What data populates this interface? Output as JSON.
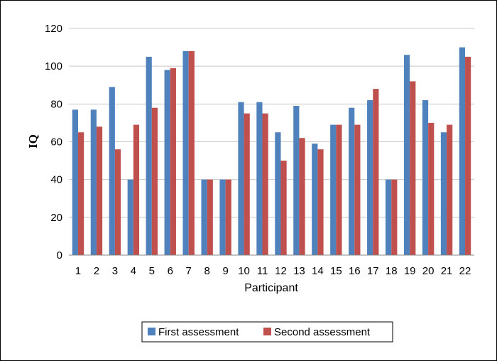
{
  "chart_data": {
    "type": "bar",
    "title": "",
    "xlabel": "Participant",
    "ylabel": "IQ",
    "ylim": [
      0,
      120
    ],
    "yticks": [
      0,
      20,
      40,
      60,
      80,
      100,
      120
    ],
    "grid": true,
    "legend_position": "bottom",
    "categories": [
      "1",
      "2",
      "3",
      "4",
      "5",
      "6",
      "7",
      "8",
      "9",
      "10",
      "11",
      "12",
      "13",
      "14",
      "15",
      "16",
      "17",
      "18",
      "19",
      "20",
      "21",
      "22"
    ],
    "series": [
      {
        "name": "First assessment",
        "color": "#4f81bd",
        "values": [
          77,
          77,
          89,
          40,
          105,
          98,
          108,
          40,
          40,
          81,
          81,
          65,
          79,
          59,
          69,
          78,
          82,
          40,
          106,
          82,
          65,
          110
        ]
      },
      {
        "name": "Second assessment",
        "color": "#c0504d",
        "values": [
          65,
          68,
          56,
          69,
          78,
          99,
          108,
          40,
          40,
          75,
          75,
          50,
          62,
          56,
          69,
          69,
          88,
          40,
          92,
          70,
          69,
          105
        ]
      }
    ]
  }
}
